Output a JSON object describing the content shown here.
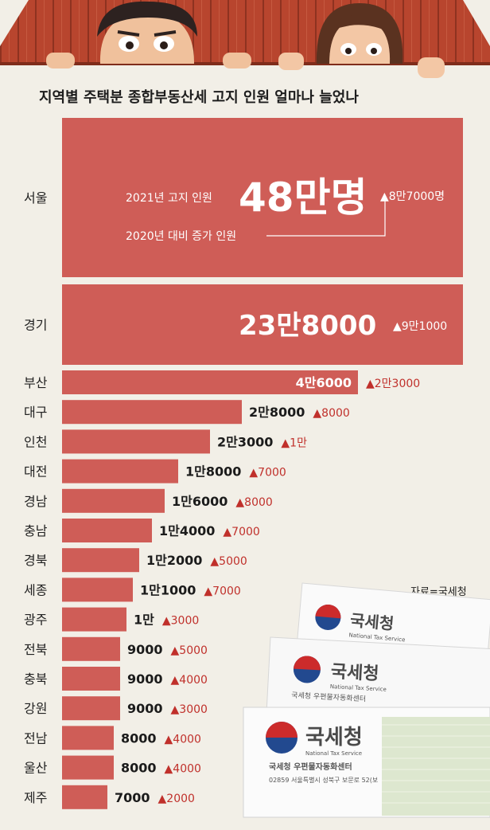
{
  "chart_data": {
    "type": "bar",
    "orientation": "horizontal",
    "title": "지역별 주택분 종합부동산세 고지 인원 얼마나 늘었나",
    "categories": [
      "서울",
      "경기",
      "부산",
      "대구",
      "인천",
      "대전",
      "경남",
      "충남",
      "경북",
      "세종",
      "광주",
      "전북",
      "충북",
      "강원",
      "전남",
      "울산",
      "제주"
    ],
    "series": [
      {
        "values": [
          480000,
          238000,
          46000,
          28000,
          23000,
          18000,
          16000,
          14000,
          12000,
          11000,
          10000,
          9000,
          9000,
          9000,
          8000,
          8000,
          7000
        ]
      },
      {
        "values": [
          87000,
          91000,
          23000,
          8000,
          10000,
          7000,
          8000,
          7000,
          5000,
          7000,
          3000,
          5000,
          4000,
          3000,
          4000,
          4000,
          2000
        ]
      }
    ],
    "value_labels": [
      "48만명",
      "23만8000",
      "4만6000",
      "2만8000",
      "2만3000",
      "1만8000",
      "1만6000",
      "1만4000",
      "1만2000",
      "1만1000",
      "1만",
      "9000",
      "9000",
      "9000",
      "8000",
      "8000",
      "7000"
    ],
    "increase_labels": [
      "▲8만7000명",
      "▲9만1000",
      "▲2만3000",
      "▲8000",
      "▲1만",
      "▲7000",
      "▲8000",
      "▲7000",
      "▲5000",
      "▲7000",
      "▲3000",
      "▲5000",
      "▲4000",
      "▲3000",
      "▲4000",
      "▲4000",
      "▲2000"
    ],
    "legend": {
      "current": "2021년 고지 인원",
      "increase": "2020년 대비 증가 인원"
    },
    "source": "자료=국세청",
    "colors": {
      "bar": "#cf5d57",
      "increase_text": "#c0302b",
      "background": "#f2efe7"
    }
  },
  "illustration": {
    "envelope_logo": "국세청",
    "envelope_logo_en": "National Tax Service",
    "envelope_sender": "국세청 우편물자동화센터",
    "envelope_address": "02859 서울특별시 성북구 보문로 52(보"
  }
}
